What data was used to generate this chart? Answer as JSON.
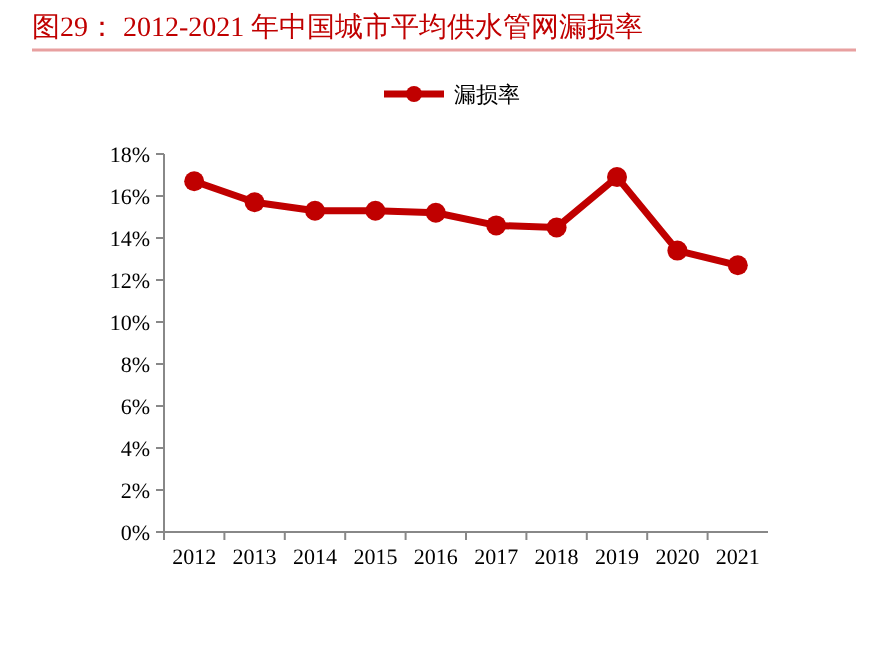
{
  "chart_data": {
    "type": "line",
    "title": "图29：  2012-2021 年中国城市平均供水管网漏损率",
    "categories": [
      "2012",
      "2013",
      "2014",
      "2015",
      "2016",
      "2017",
      "2018",
      "2019",
      "2020",
      "2021"
    ],
    "series": [
      {
        "name": "漏损率",
        "color": "#c00000",
        "values": [
          16.7,
          15.7,
          15.3,
          15.3,
          15.2,
          14.6,
          14.5,
          16.9,
          13.4,
          12.7
        ]
      }
    ],
    "ylim": [
      0,
      18
    ],
    "yticks": [
      {
        "value": 0,
        "label": "0%"
      },
      {
        "value": 2,
        "label": "2%"
      },
      {
        "value": 4,
        "label": "4%"
      },
      {
        "value": 6,
        "label": "6%"
      },
      {
        "value": 8,
        "label": "8%"
      },
      {
        "value": 10,
        "label": "10%"
      },
      {
        "value": 12,
        "label": "12%"
      },
      {
        "value": 14,
        "label": "14%"
      },
      {
        "value": 16,
        "label": "16%"
      },
      {
        "value": 18,
        "label": "18%"
      }
    ],
    "grid": false,
    "legend": "top",
    "marker": "circle",
    "line_style": "solid"
  }
}
